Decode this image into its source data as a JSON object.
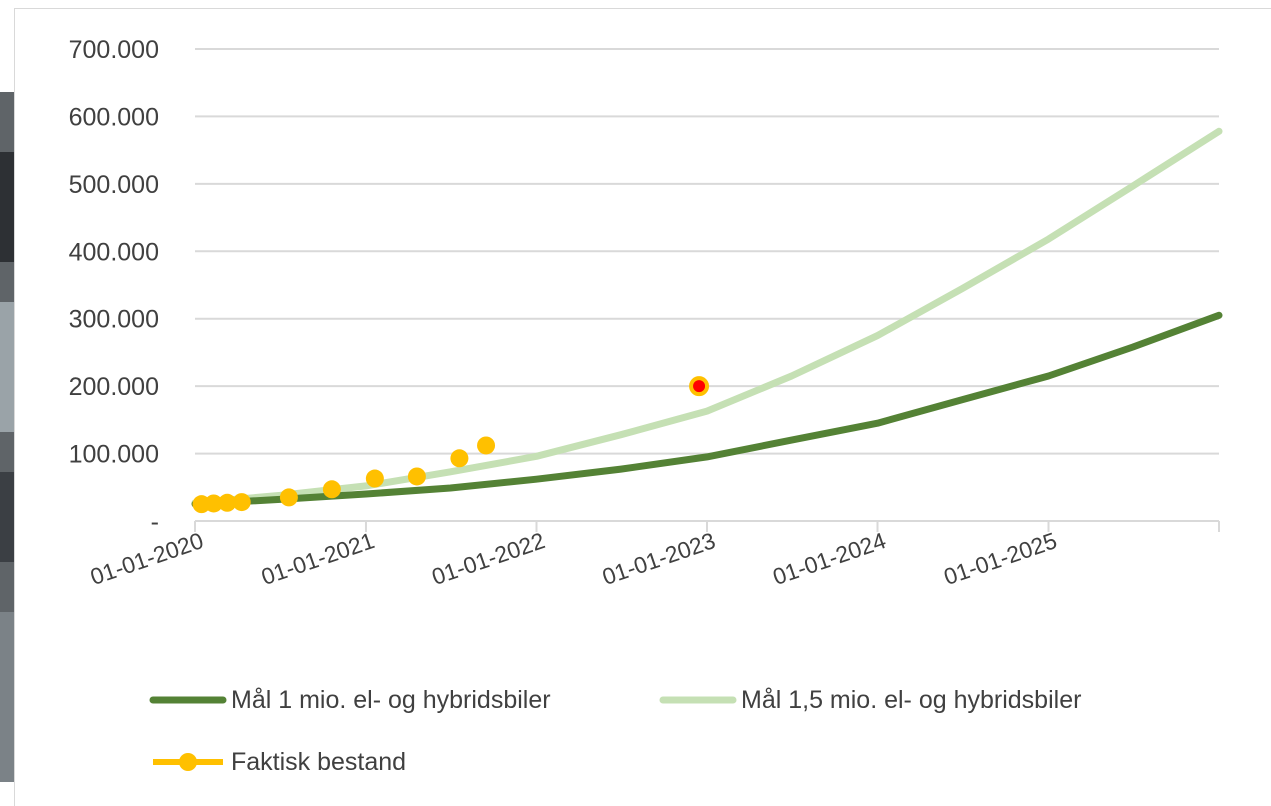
{
  "chart_data": {
    "type": "line",
    "title": "",
    "xlabel": "",
    "ylabel": "",
    "x_axis": {
      "type": "date",
      "range": [
        "2020-01-01",
        "2026-01-01"
      ],
      "tick_labels": [
        "01-01-2020",
        "01-01-2021",
        "01-01-2022",
        "01-01-2023",
        "01-01-2024",
        "01-01-2025"
      ]
    },
    "y_axis": {
      "range": [
        0,
        700000
      ],
      "tick_labels": [
        "-",
        "100.000",
        "200.000",
        "300.000",
        "400.000",
        "500.000",
        "600.000",
        "700.000"
      ]
    },
    "grid": "horizontal",
    "legend_position": "bottom",
    "series": [
      {
        "name": "Mål 1 mio. el- og hybridsbiler",
        "kind": "line",
        "color": "#548235",
        "points": [
          {
            "x": "2020-01-01",
            "y": 25000
          },
          {
            "x": "2020-07-01",
            "y": 32000
          },
          {
            "x": "2021-01-01",
            "y": 40000
          },
          {
            "x": "2021-07-01",
            "y": 49000
          },
          {
            "x": "2022-01-01",
            "y": 62000
          },
          {
            "x": "2022-07-01",
            "y": 77000
          },
          {
            "x": "2023-01-01",
            "y": 95000
          },
          {
            "x": "2023-07-01",
            "y": 120000
          },
          {
            "x": "2024-01-01",
            "y": 145000
          },
          {
            "x": "2024-07-01",
            "y": 180000
          },
          {
            "x": "2025-01-01",
            "y": 215000
          },
          {
            "x": "2025-07-01",
            "y": 258000
          },
          {
            "x": "2026-01-01",
            "y": 305000
          }
        ]
      },
      {
        "name": "Mål 1,5 mio. el- og hybridsbiler",
        "kind": "line",
        "color": "#c5e0b4",
        "points": [
          {
            "x": "2020-01-01",
            "y": 27000
          },
          {
            "x": "2020-07-01",
            "y": 38000
          },
          {
            "x": "2021-01-01",
            "y": 52000
          },
          {
            "x": "2021-07-01",
            "y": 73000
          },
          {
            "x": "2022-01-01",
            "y": 96000
          },
          {
            "x": "2022-07-01",
            "y": 128000
          },
          {
            "x": "2023-01-01",
            "y": 163000
          },
          {
            "x": "2023-07-01",
            "y": 215000
          },
          {
            "x": "2024-01-01",
            "y": 275000
          },
          {
            "x": "2024-07-01",
            "y": 345000
          },
          {
            "x": "2025-01-01",
            "y": 418000
          },
          {
            "x": "2025-07-01",
            "y": 497000
          },
          {
            "x": "2026-01-01",
            "y": 578000
          }
        ]
      },
      {
        "name": "Faktisk bestand",
        "kind": "markers",
        "color": "#ffc000",
        "highlight_color": "#ff0000",
        "points": [
          {
            "x": "2020-01-15",
            "y": 25000
          },
          {
            "x": "2020-02-10",
            "y": 26000
          },
          {
            "x": "2020-03-10",
            "y": 27000
          },
          {
            "x": "2020-04-10",
            "y": 28000
          },
          {
            "x": "2020-07-20",
            "y": 35000
          },
          {
            "x": "2020-10-20",
            "y": 47000
          },
          {
            "x": "2021-01-20",
            "y": 63000
          },
          {
            "x": "2021-04-20",
            "y": 66000
          },
          {
            "x": "2021-07-20",
            "y": 93000
          },
          {
            "x": "2021-09-15",
            "y": 112000
          },
          {
            "x": "2022-12-15",
            "y": 200000,
            "highlight": true
          }
        ]
      }
    ]
  }
}
